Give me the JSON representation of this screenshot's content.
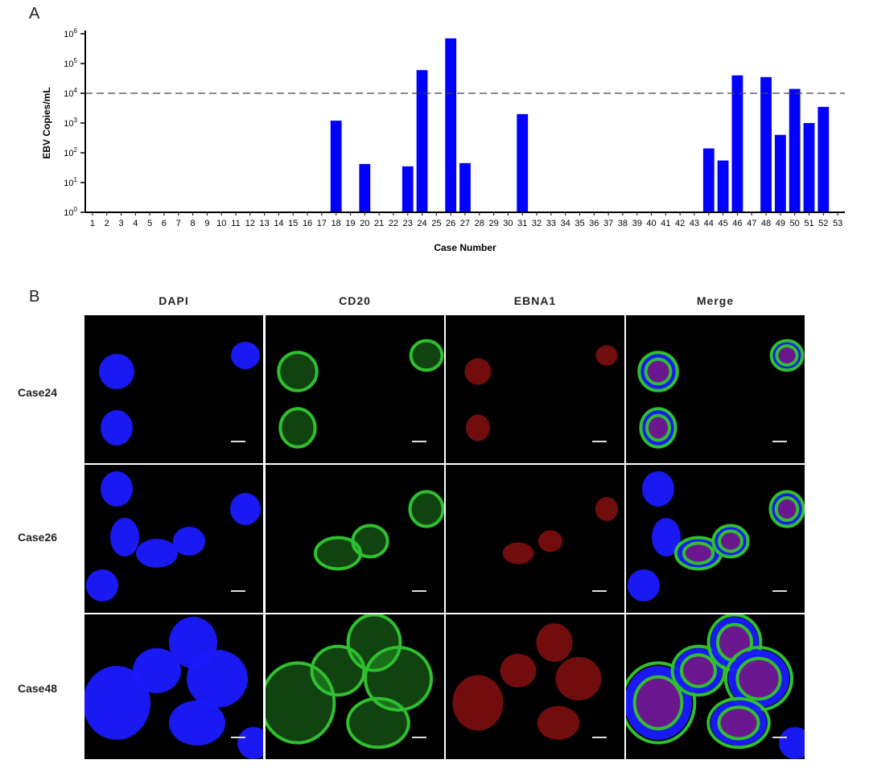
{
  "panelA": {
    "letter": "A",
    "chart_data": {
      "type": "bar",
      "title": "",
      "xlabel": "Case Number",
      "ylabel": "EBV Copies/mL",
      "yscale": "log",
      "ylim": [
        1,
        1000000
      ],
      "yticks": [
        {
          "value": 1,
          "base": "10",
          "exp": "0"
        },
        {
          "value": 10,
          "base": "10",
          "exp": "1"
        },
        {
          "value": 100,
          "base": "10",
          "exp": "2"
        },
        {
          "value": 1000,
          "base": "10",
          "exp": "3"
        },
        {
          "value": 10000,
          "base": "10",
          "exp": "4"
        },
        {
          "value": 100000,
          "base": "10",
          "exp": "5"
        },
        {
          "value": 1000000,
          "base": "10",
          "exp": "6"
        }
      ],
      "threshold": 10000,
      "bar_color": "#0000ff",
      "categories": [
        "1",
        "2",
        "3",
        "4",
        "5",
        "6",
        "7",
        "8",
        "9",
        "10",
        "11",
        "12",
        "13",
        "14",
        "15",
        "16",
        "17",
        "18",
        "19",
        "20",
        "21",
        "22",
        "23",
        "24",
        "25",
        "26",
        "27",
        "28",
        "29",
        "30",
        "31",
        "32",
        "33",
        "34",
        "35",
        "36",
        "37",
        "38",
        "39",
        "40",
        "41",
        "42",
        "43",
        "44",
        "45",
        "46",
        "47",
        "48",
        "49",
        "50",
        "51",
        "52",
        "53"
      ],
      "values": [
        0,
        0,
        0,
        0,
        0,
        0,
        0,
        0,
        0,
        0,
        0,
        0,
        0,
        0,
        0,
        0,
        0,
        1200,
        0,
        42,
        0,
        0,
        35,
        60000,
        0,
        700000,
        45,
        0,
        0,
        0,
        2000,
        0,
        0,
        0,
        0,
        0,
        0,
        0,
        0,
        0,
        0,
        0,
        0,
        140,
        55,
        40000,
        0,
        35000,
        400,
        14000,
        1000,
        3500,
        0
      ],
      "grid": false,
      "legend": "none"
    }
  },
  "panelB": {
    "letter": "B",
    "columns": [
      "DAPI",
      "CD20",
      "EBNA1",
      "Merge"
    ],
    "rows": [
      "Case24",
      "Case26",
      "Case48"
    ],
    "colors": {
      "dapi": "#1a1aff",
      "cd20": "#2fbf2f",
      "ebna1": "#d01818"
    }
  }
}
